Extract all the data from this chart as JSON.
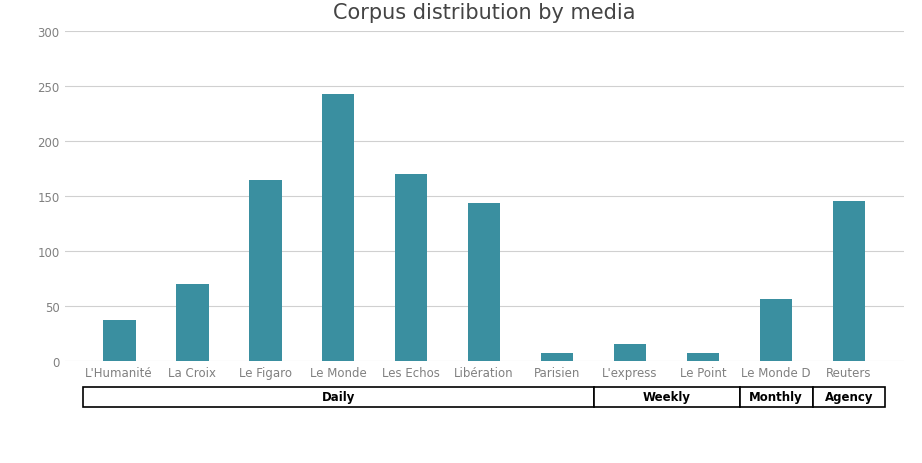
{
  "title": "Corpus distribution by media",
  "categories": [
    "L'Humanité",
    "La Croix",
    "Le Figaro",
    "Le Monde",
    "Les Echos",
    "Libération",
    "Parisien",
    "L'express",
    "Le Point",
    "Le Monde D",
    "Reuters"
  ],
  "values": [
    37,
    70,
    165,
    243,
    170,
    144,
    7,
    15,
    7,
    56,
    146
  ],
  "bar_color": "#3a8fa0",
  "ylim": [
    0,
    300
  ],
  "yticks": [
    0,
    50,
    100,
    150,
    200,
    250,
    300
  ],
  "groups": [
    {
      "label": "Daily",
      "start": 0,
      "end": 6
    },
    {
      "label": "Weekly",
      "start": 7,
      "end": 8
    },
    {
      "label": "Monthly",
      "start": 9,
      "end": 9
    },
    {
      "label": "Agency",
      "start": 10,
      "end": 10
    }
  ],
  "background_color": "#ffffff",
  "grid_color": "#d0d0d0",
  "tick_color": "#808080",
  "title_fontsize": 15,
  "label_fontsize": 8.5,
  "bar_width": 0.45
}
